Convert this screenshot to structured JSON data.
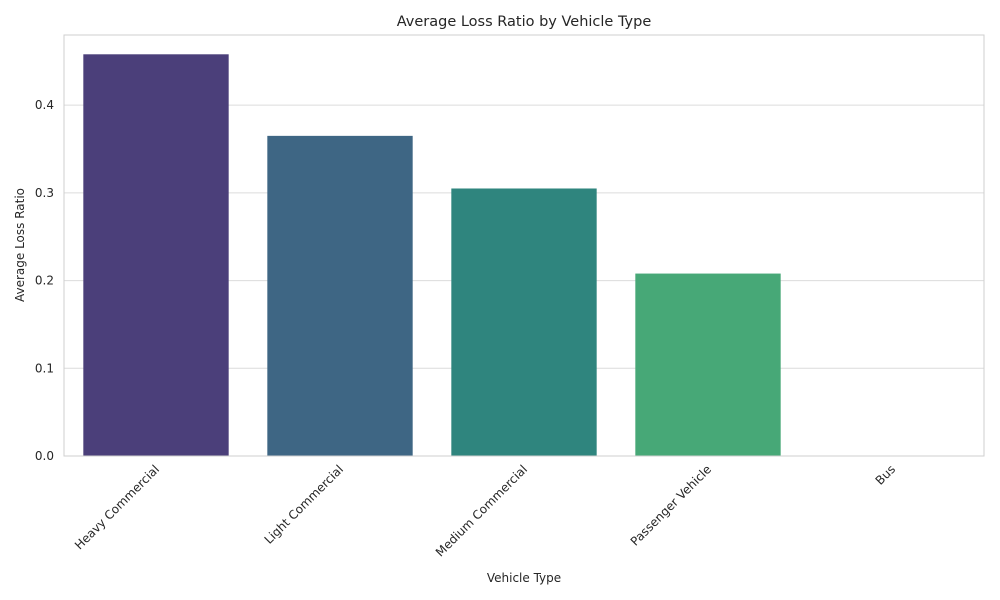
{
  "chart_data": {
    "type": "bar",
    "title": "Average Loss Ratio by Vehicle Type",
    "xlabel": "Vehicle Type",
    "ylabel": "Average Loss Ratio",
    "categories": [
      "Heavy Commercial",
      "Light Commercial",
      "Medium Commercial",
      "Passenger Vehicle",
      "Bus"
    ],
    "values": [
      0.458,
      0.365,
      0.305,
      0.208,
      0.0
    ],
    "colors": [
      "#4b3f7a",
      "#3e6684",
      "#2f857e",
      "#47a877",
      "#66c86a"
    ],
    "ylim": [
      0,
      0.48
    ],
    "yticks": [
      0.0,
      0.1,
      0.2,
      0.3,
      0.4
    ],
    "ytick_labels": [
      "0.0",
      "0.1",
      "0.2",
      "0.3",
      "0.4"
    ],
    "grid": true,
    "grid_axis": "y"
  }
}
